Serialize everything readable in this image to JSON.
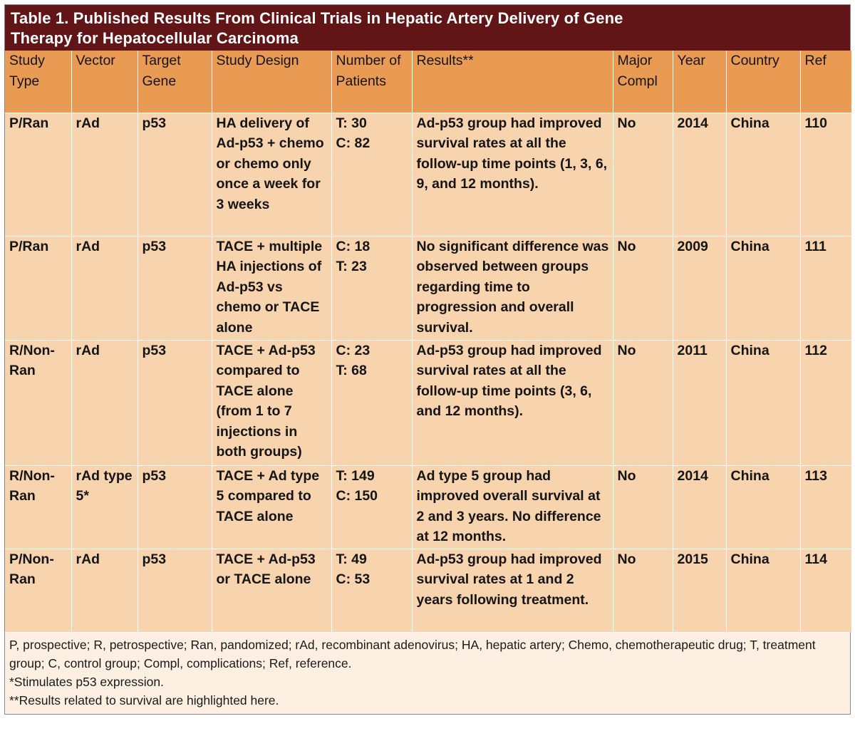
{
  "title": {
    "line1": "Table 1. Published Results From Clinical Trials in Hepatic Artery Delivery of Gene",
    "line2": "Therapy for Hepatocellular Carcinoma"
  },
  "headers": {
    "study_type": "Study Type",
    "vector": "Vector",
    "target_gene": "Target Gene",
    "study_design": "Study Design",
    "number_patients": "Number of Patients",
    "results": "Results**",
    "major_compl": "Major Compl",
    "year": "Year",
    "country": "Country",
    "ref": "Ref"
  },
  "rows": [
    {
      "study_type": "P/Ran",
      "vector": "rAd",
      "target_gene": "p53",
      "study_design": "HA delivery of Ad-p53 + chemo or chemo only once a week for 3 weeks",
      "patients_1": "T: 30",
      "patients_2": "C: 82",
      "results": "Ad-p53 group had improved survival rates at all the follow-up time points (1, 3, 6, 9, and 12 months).",
      "major_compl": "No",
      "year": "2014",
      "country": "China",
      "ref": "110"
    },
    {
      "study_type": "P/Ran",
      "vector": "rAd",
      "target_gene": "p53",
      "study_design": "TACE + multiple HA injections of Ad-p53 vs chemo or TACE alone",
      "patients_1": "C: 18",
      "patients_2": "T: 23",
      "results": "No significant difference was observed between groups regarding time to progression and overall survival.",
      "major_compl": "No",
      "year": "2009",
      "country": "China",
      "ref": "111"
    },
    {
      "study_type": "R/Non-Ran",
      "vector": "rAd",
      "target_gene": "p53",
      "study_design": "TACE + Ad-p53 compared to TACE alone (from 1 to 7 injections in both groups)",
      "patients_1": "C: 23",
      "patients_2": "T: 68",
      "results": "Ad-p53 group had improved survival rates at all the follow-up time points (3, 6, and 12 months).",
      "major_compl": "No",
      "year": "2011",
      "country": "China",
      "ref": "112"
    },
    {
      "study_type": "R/Non-Ran",
      "vector": "rAd type 5*",
      "target_gene": "p53",
      "study_design": "TACE + Ad type 5 compared to TACE alone",
      "patients_1": "T: 149",
      "patients_2": "C: 150",
      "results": "Ad type 5 group had improved overall survival at 2 and 3 years. No difference at 12 months.",
      "major_compl": "No",
      "year": "2014",
      "country": "China",
      "ref": "113"
    },
    {
      "study_type": "P/Non-Ran",
      "vector": "rAd",
      "target_gene": "p53",
      "study_design": "TACE + Ad-p53 or TACE alone",
      "patients_1": "T: 49",
      "patients_2": "C: 53",
      "results": "Ad-p53 group had improved survival rates at 1 and 2 years following treatment.",
      "major_compl": "No",
      "year": "2015",
      "country": "China",
      "ref": "114"
    }
  ],
  "footnotes": {
    "abbreviations": "P, prospective; R, petrospective; Ran, pandomized; rAd, recombinant adenovirus; HA, hepatic artery; Chemo, chemotherapeutic drug; T, treatment group; C, control group; Compl, complications; Ref, reference.",
    "single_star": "*Stimulates p53 expression.",
    "double_star": "**Results related to survival are highlighted here."
  }
}
